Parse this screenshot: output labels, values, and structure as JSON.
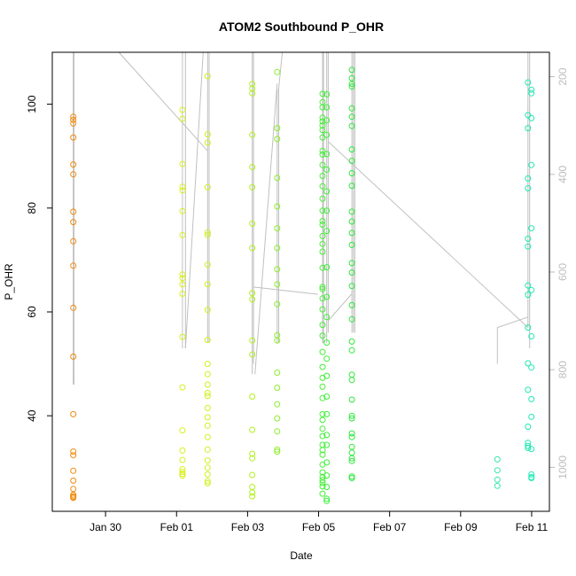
{
  "chart_data": {
    "type": "scatter",
    "title": "ATOM2 Southbound P_OHR",
    "xlabel": "Date",
    "ylabel": "P_OHR",
    "x_unit": "date",
    "xlim": [
      "2024-01-28T12:00",
      "2024-02-11T12:00"
    ],
    "ylim": [
      21.6,
      110
    ],
    "x_ticks": [
      {
        "label": "Jan 30",
        "date": "2024-01-30T00:00"
      },
      {
        "label": "Feb 01",
        "date": "2024-02-01T00:00"
      },
      {
        "label": "Feb 03",
        "date": "2024-02-03T00:00"
      },
      {
        "label": "Feb 05",
        "date": "2024-02-05T00:00"
      },
      {
        "label": "Feb 07",
        "date": "2024-02-07T00:00"
      },
      {
        "label": "Feb 09",
        "date": "2024-02-09T00:00"
      },
      {
        "label": "Feb 11",
        "date": "2024-02-11T00:00"
      }
    ],
    "y_ticks": [
      40,
      60,
      80,
      100
    ],
    "y2_ticks": [
      200,
      400,
      600,
      800,
      1000
    ],
    "y2lim": [
      1090,
      150
    ],
    "grid": false,
    "legend": "none",
    "colors": {
      "frame": "#000000",
      "track_line": "#c0c0c0",
      "right_axis": "#bdbdbd",
      "gradient": [
        "#ff8c00",
        "#ffd700",
        "#ffff00",
        "#adff2f",
        "#00ff00",
        "#00ffbf"
      ]
    },
    "series": [
      {
        "x": "2024-01-29T02:10",
        "color": "#ef8a0c",
        "y": [
          97.6,
          97.0,
          96.3,
          93.6,
          88.4,
          86.5,
          79.3,
          77.3,
          73.6,
          68.9,
          60.8,
          51.4,
          40.3,
          33.1,
          32.4,
          29.4,
          27.5,
          25.9,
          24.8,
          24.5,
          24.3,
          24.2
        ]
      },
      {
        "x": "2024-02-01T04:00",
        "color": "#d9f01a",
        "y": [
          98.9,
          97.2,
          88.5,
          84.1,
          83.4,
          79.4,
          74.8,
          67.2,
          66.5,
          65.3,
          63.5,
          55.2,
          45.5,
          37.2,
          33.3,
          31.5,
          29.7,
          29.2,
          28.8,
          28.5
        ]
      },
      {
        "x": "2024-02-01T21:00",
        "color": "#ccf21c",
        "y": [
          105.4,
          94.2,
          92.6,
          84.0,
          75.3,
          74.8,
          69.1,
          65.3,
          60.4,
          54.6,
          50.0,
          48.0,
          46.0,
          44.4,
          43.8,
          41.5,
          39.7,
          38.1,
          35.9,
          33.5,
          31.4,
          30.0,
          28.7,
          27.4,
          27.0
        ]
      },
      {
        "x": "2024-02-03T03:10",
        "color": "#b2f01f",
        "y": [
          103.9,
          103.0,
          102.1,
          94.1,
          87.9,
          84.0,
          77.0,
          72.3,
          63.6,
          62.4,
          54.5,
          51.8,
          43.7,
          37.3,
          32.7,
          31.8,
          28.6,
          26.3,
          25.2,
          24.5
        ]
      },
      {
        "x": "2024-02-03T20:00",
        "color": "#8cee2a",
        "y": [
          106.2,
          95.4,
          93.3,
          85.8,
          80.3,
          76.1,
          72.3,
          68.2,
          65.3,
          61.5,
          55.5,
          54.5,
          48.3,
          45.4,
          42.2,
          39.5,
          37.0,
          33.5,
          33.1
        ]
      },
      {
        "x": "2024-02-05T02:40",
        "color": "#46f036",
        "y": [
          102.0,
          100.4,
          99.4,
          97.4,
          96.7,
          95.9,
          95.0,
          93.6,
          91.0,
          90.3,
          88.3,
          86.2,
          84.2,
          81.8,
          79.5,
          77.5,
          76.8,
          74.6,
          73.1,
          71.6,
          68.5,
          64.8,
          64.4,
          62.6,
          60.5,
          57.5,
          55.4,
          52.3,
          49.4,
          47.3,
          45.6,
          43.4,
          40.3,
          39.2,
          37.5,
          36.1,
          34.4,
          33.4,
          32.5,
          30.6,
          29.1,
          28.2,
          27.6,
          27.1,
          26.4,
          25.0
        ]
      },
      {
        "x": "2024-02-05T05:30",
        "color": "#3df03a",
        "y": [
          101.9,
          99.4,
          96.9,
          94.1,
          90.4,
          87.4,
          83.2,
          79.5,
          75.6,
          68.6,
          62.9,
          59.0,
          54.1,
          51.0,
          47.7,
          43.7,
          40.3,
          36.3,
          34.4,
          31.0,
          28.5,
          26.3,
          24.0,
          23.6
        ]
      },
      {
        "x": "2024-02-05T22:30",
        "color": "#2ee83a",
        "y": [
          106.6,
          105.0,
          103.9,
          103.4,
          99.2,
          97.6,
          95.8,
          91.3,
          89.1,
          86.7,
          84.3,
          79.3,
          77.4,
          75.2,
          72.9,
          69.4,
          67.6,
          65.0,
          61.3,
          58.6,
          54.3,
          52.6,
          47.9,
          46.9,
          43.1,
          40.0,
          39.5,
          36.6,
          35.9,
          34.0,
          32.9,
          31.8,
          31.3,
          28.3,
          28.0
        ]
      },
      {
        "x": "2024-02-10T00:50",
        "color": "#33e8a6",
        "y": [
          31.6,
          29.5,
          27.7,
          26.5
        ]
      },
      {
        "x": "2024-02-10T21:30",
        "color": "#1de8b0",
        "y": [
          104.2,
          97.9,
          95.4,
          85.7,
          83.8,
          74.1,
          72.6,
          65.1,
          63.3,
          57.0,
          50.1,
          45.0,
          37.9,
          34.8,
          34.2,
          33.8
        ]
      },
      {
        "x": "2024-02-10T23:50",
        "color": "#22eab6",
        "y": [
          102.8,
          102.1,
          97.3,
          88.3,
          76.1,
          64.2,
          55.3,
          49.3,
          43.2,
          39.8,
          33.6,
          28.7,
          28.2,
          28.0
        ]
      }
    ],
    "tracks": [
      {
        "points": [
          [
            "2024-01-29T02:10",
            110.0
          ],
          [
            "2024-01-29T02:10",
            46.0
          ]
        ]
      },
      {
        "points": [
          [
            "2024-01-29T02:40",
            110.0
          ],
          [
            "2024-01-29T02:40",
            46.0
          ]
        ]
      },
      {
        "points": [
          [
            "2024-01-30T09:00",
            110.0
          ],
          [
            "2024-02-01T21:00",
            91.0
          ]
        ]
      },
      {
        "points": [
          [
            "2024-02-01T04:00",
            110.0
          ],
          [
            "2024-02-01T04:00",
            53.0
          ]
        ]
      },
      {
        "points": [
          [
            "2024-02-01T06:00",
            110.0
          ],
          [
            "2024-02-01T06:00",
            53.0
          ]
        ]
      },
      {
        "points": [
          [
            "2024-02-01T06:00",
            53.0
          ],
          [
            "2024-02-01T18:00",
            110.0
          ]
        ]
      },
      {
        "points": [
          [
            "2024-02-01T21:00",
            110.0
          ],
          [
            "2024-02-01T21:00",
            54.0
          ]
        ]
      },
      {
        "points": [
          [
            "2024-02-01T22:00",
            110.0
          ],
          [
            "2024-02-01T22:00",
            54.0
          ]
        ]
      },
      {
        "points": [
          [
            "2024-02-03T03:10",
            110.0
          ],
          [
            "2024-02-03T03:10",
            48.0
          ]
        ]
      },
      {
        "points": [
          [
            "2024-02-03T04:00",
            110.0
          ],
          [
            "2024-02-03T04:00",
            50.0
          ]
        ]
      },
      {
        "points": [
          [
            "2024-02-03T04:00",
            64.8
          ],
          [
            "2024-02-04T23:30",
            63.4
          ]
        ]
      },
      {
        "points": [
          [
            "2024-02-03T05:00",
            48.0
          ],
          [
            "2024-02-03T20:00",
            104.0
          ]
        ]
      },
      {
        "points": [
          [
            "2024-02-03T20:00",
            103.0
          ],
          [
            "2024-02-03T20:00",
            54.0
          ]
        ]
      },
      {
        "points": [
          [
            "2024-02-03T21:00",
            103.0
          ],
          [
            "2024-02-03T21:00",
            54.0
          ]
        ]
      },
      {
        "points": [
          [
            "2024-02-03T21:00",
            103.0
          ],
          [
            "2024-02-03T23:30",
            110.0
          ]
        ]
      },
      {
        "points": [
          [
            "2024-02-05T02:40",
            110.0
          ],
          [
            "2024-02-05T02:40",
            54.0
          ]
        ]
      },
      {
        "points": [
          [
            "2024-02-05T03:20",
            110.0
          ],
          [
            "2024-02-05T03:20",
            54.0
          ]
        ]
      },
      {
        "points": [
          [
            "2024-02-05T05:30",
            110.0
          ],
          [
            "2024-02-05T05:30",
            54.0
          ]
        ]
      },
      {
        "points": [
          [
            "2024-02-05T06:30",
            110.0
          ],
          [
            "2024-02-05T06:30",
            56.0
          ]
        ]
      },
      {
        "points": [
          [
            "2024-02-05T06:30",
            58.3
          ],
          [
            "2024-02-05T22:30",
            63.5
          ]
        ]
      },
      {
        "points": [
          [
            "2024-02-05T06:30",
            92.8
          ],
          [
            "2024-02-10T21:30",
            57.0
          ]
        ]
      },
      {
        "points": [
          [
            "2024-02-05T22:30",
            110.0
          ],
          [
            "2024-02-05T22:30",
            56.0
          ]
        ]
      },
      {
        "points": [
          [
            "2024-02-05T23:30",
            110.0
          ],
          [
            "2024-02-05T23:30",
            56.0
          ]
        ]
      },
      {
        "points": [
          [
            "2024-02-06T00:30",
            110.0
          ],
          [
            "2024-02-06T00:30",
            56.0
          ]
        ]
      },
      {
        "points": [
          [
            "2024-02-10T00:50",
            50.0
          ],
          [
            "2024-02-10T00:50",
            57.0
          ]
        ]
      },
      {
        "points": [
          [
            "2024-02-10T00:50",
            57.0
          ],
          [
            "2024-02-10T21:30",
            59.0
          ]
        ]
      },
      {
        "points": [
          [
            "2024-02-10T21:30",
            110.0
          ],
          [
            "2024-02-10T21:30",
            57.0
          ]
        ]
      },
      {
        "points": [
          [
            "2024-02-10T22:40",
            110.0
          ],
          [
            "2024-02-10T22:40",
            53.0
          ]
        ]
      }
    ]
  }
}
